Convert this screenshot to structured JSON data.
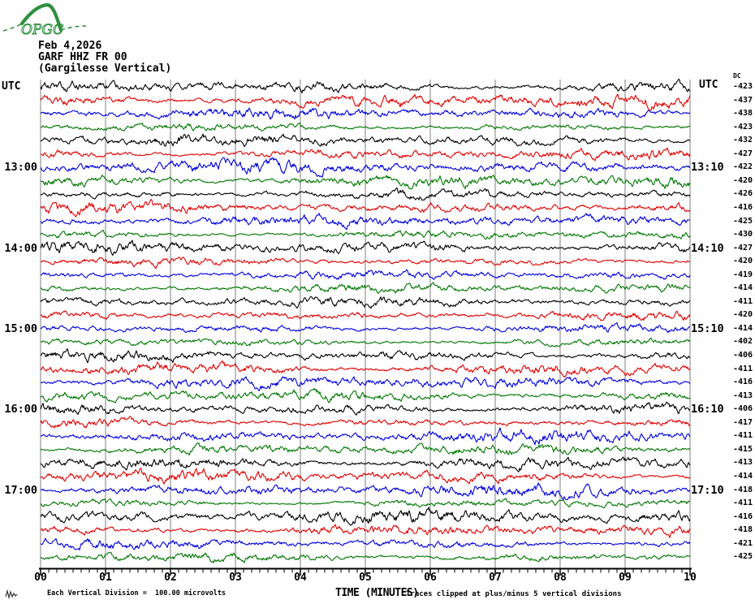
{
  "logo": {
    "text": "OPGC",
    "color": "#2f8f3f"
  },
  "header": {
    "date": "Feb 4,2026",
    "station_code": "GARF HHZ FR 00",
    "station_name": "(Gargilesse Vertical)"
  },
  "left_axis_header": "UTC",
  "right_axis_header": "UTC",
  "dc_column_header": "DC",
  "left_time_labels": [
    {
      "row_index": 6,
      "text": "13:00"
    },
    {
      "row_index": 12,
      "text": "14:00"
    },
    {
      "row_index": 18,
      "text": "15:00"
    },
    {
      "row_index": 24,
      "text": "16:00"
    },
    {
      "row_index": 30,
      "text": "17:00"
    }
  ],
  "right_time_labels": [
    {
      "row_index": 6,
      "text": "13:10"
    },
    {
      "row_index": 12,
      "text": "14:10"
    },
    {
      "row_index": 18,
      "text": "15:10"
    },
    {
      "row_index": 24,
      "text": "16:10"
    },
    {
      "row_index": 30,
      "text": "17:10"
    }
  ],
  "x_axis": {
    "title": "TIME (MINUTES)",
    "tick_labels": [
      "00",
      "01",
      "02",
      "03",
      "04",
      "05",
      "06",
      "07",
      "08",
      "09",
      "10"
    ]
  },
  "footer": {
    "scale_note": "Each Vertical Division =  100.00 microvolts",
    "clip_note": "Traces clipped at plus/minus 5 vertical divisions"
  },
  "trace_colors": {
    "black": "#000000",
    "red": "#e00000",
    "blue": "#0000dd",
    "green": "#007700"
  },
  "chart_data": {
    "type": "line",
    "subtype": "helicorder_seismogram",
    "title": "GARF HHZ FR 00 (Gargilesse Vertical) Feb 4,2026",
    "xlabel": "TIME (MINUTES)",
    "x_range_minutes": [
      0,
      10
    ],
    "minutes_per_row": 10,
    "minor_tick_subdivisions_per_minute": 8,
    "vertical_division_microvolts": 100.0,
    "clip_limit_divisions": 5,
    "grid": "vertical lines at each minute",
    "rows": [
      {
        "start_utc": "12:00",
        "color": "black",
        "dc": -423
      },
      {
        "start_utc": "12:10",
        "color": "red",
        "dc": -437
      },
      {
        "start_utc": "12:20",
        "color": "blue",
        "dc": -438
      },
      {
        "start_utc": "12:30",
        "color": "green",
        "dc": -423
      },
      {
        "start_utc": "12:40",
        "color": "black",
        "dc": -432
      },
      {
        "start_utc": "12:50",
        "color": "red",
        "dc": -427
      },
      {
        "start_utc": "13:00",
        "color": "blue",
        "dc": -422
      },
      {
        "start_utc": "13:10",
        "color": "green",
        "dc": -420
      },
      {
        "start_utc": "13:20",
        "color": "black",
        "dc": -426
      },
      {
        "start_utc": "13:30",
        "color": "red",
        "dc": -416
      },
      {
        "start_utc": "13:40",
        "color": "blue",
        "dc": -425
      },
      {
        "start_utc": "13:50",
        "color": "green",
        "dc": -430
      },
      {
        "start_utc": "14:00",
        "color": "black",
        "dc": -427
      },
      {
        "start_utc": "14:10",
        "color": "red",
        "dc": -420
      },
      {
        "start_utc": "14:20",
        "color": "blue",
        "dc": -419
      },
      {
        "start_utc": "14:30",
        "color": "green",
        "dc": -414
      },
      {
        "start_utc": "14:40",
        "color": "black",
        "dc": -411
      },
      {
        "start_utc": "14:50",
        "color": "red",
        "dc": -420
      },
      {
        "start_utc": "15:00",
        "color": "blue",
        "dc": -414
      },
      {
        "start_utc": "15:10",
        "color": "green",
        "dc": -402
      },
      {
        "start_utc": "15:20",
        "color": "black",
        "dc": -406
      },
      {
        "start_utc": "15:30",
        "color": "red",
        "dc": -411
      },
      {
        "start_utc": "15:40",
        "color": "blue",
        "dc": -416
      },
      {
        "start_utc": "15:50",
        "color": "green",
        "dc": -413
      },
      {
        "start_utc": "16:00",
        "color": "black",
        "dc": -406
      },
      {
        "start_utc": "16:10",
        "color": "red",
        "dc": -417
      },
      {
        "start_utc": "16:20",
        "color": "blue",
        "dc": -411
      },
      {
        "start_utc": "16:30",
        "color": "green",
        "dc": -415
      },
      {
        "start_utc": "16:40",
        "color": "black",
        "dc": -413
      },
      {
        "start_utc": "16:50",
        "color": "red",
        "dc": -414
      },
      {
        "start_utc": "17:00",
        "color": "blue",
        "dc": -418
      },
      {
        "start_utc": "17:10",
        "color": "green",
        "dc": -411
      },
      {
        "start_utc": "17:20",
        "color": "black",
        "dc": -416
      },
      {
        "start_utc": "17:30",
        "color": "red",
        "dc": -418
      },
      {
        "start_utc": "17:40",
        "color": "blue",
        "dc": -421
      },
      {
        "start_utc": "17:50",
        "color": "green",
        "dc": -425
      }
    ]
  }
}
